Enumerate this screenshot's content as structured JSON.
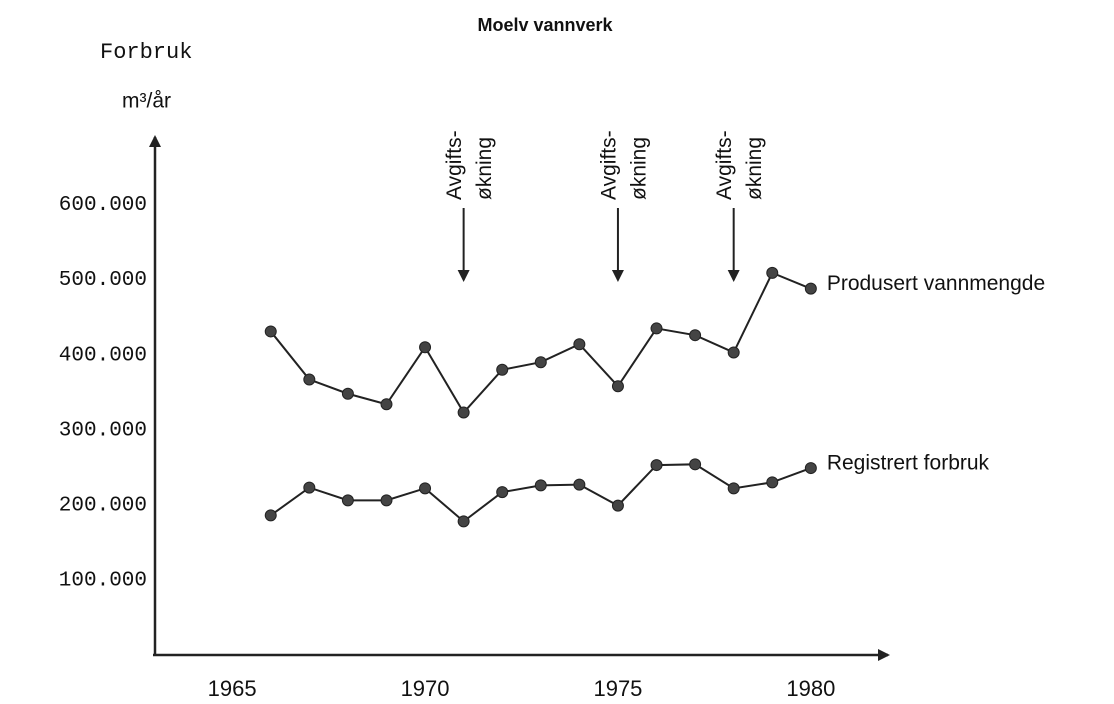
{
  "chart_data": {
    "type": "line",
    "title": "Moelv vannverk",
    "y_label": "Forbruk",
    "y_unit": "m³/år",
    "x": [
      1966,
      1967,
      1968,
      1969,
      1970,
      1971,
      1972,
      1973,
      1974,
      1975,
      1976,
      1977,
      1978,
      1979,
      1980
    ],
    "series": [
      {
        "name": "Produsert vannmengde",
        "color": "#222",
        "values": [
          431000,
          367000,
          348000,
          334000,
          410000,
          323000,
          380000,
          390000,
          414000,
          358000,
          435000,
          426000,
          403000,
          509000,
          488000
        ]
      },
      {
        "name": "Registrert forbruk",
        "color": "#222",
        "values": [
          186000,
          223000,
          206000,
          206000,
          222000,
          178000,
          217000,
          226000,
          227000,
          199000,
          253000,
          254000,
          222000,
          230000,
          249000
        ]
      }
    ],
    "xlim": [
      1963,
      1982
    ],
    "xticks": [
      1965,
      1970,
      1975,
      1980
    ],
    "ylim": [
      0,
      690000
    ],
    "yticks": [
      {
        "value": 100000,
        "label": "100.000"
      },
      {
        "value": 200000,
        "label": "200.000"
      },
      {
        "value": 300000,
        "label": "300.000"
      },
      {
        "value": 400000,
        "label": "400.000"
      },
      {
        "value": 500000,
        "label": "500.000"
      },
      {
        "value": 600000,
        "label": "600.000"
      }
    ],
    "grid": false,
    "annotations": [
      {
        "x": 1971,
        "lines": [
          "Avgifts-",
          "økning"
        ]
      },
      {
        "x": 1975,
        "lines": [
          "Avgifts-",
          "økning"
        ]
      },
      {
        "x": 1978,
        "lines": [
          "Avgifts-",
          "økning"
        ]
      }
    ]
  }
}
